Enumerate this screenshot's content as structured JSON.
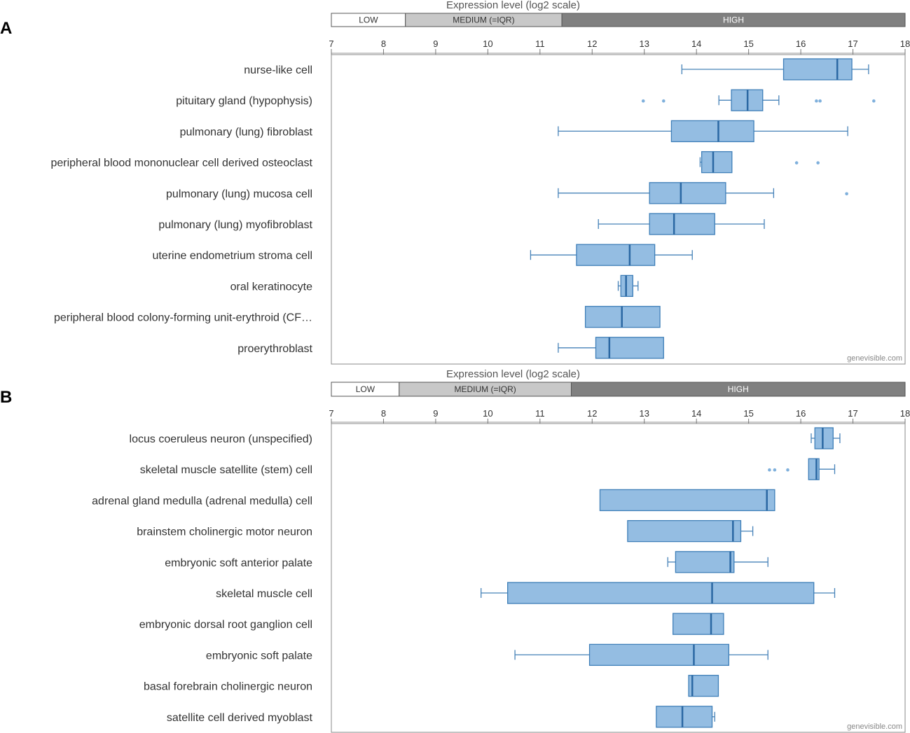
{
  "chart_data": [
    {
      "panel": "A",
      "type": "boxplot",
      "title": "",
      "xlabel": "Expression level (log2 scale)",
      "xlim": [
        7,
        18
      ],
      "ticks": [
        "7",
        "8",
        "9",
        "10",
        "11",
        "12",
        "13",
        "14",
        "15",
        "16",
        "17",
        "18"
      ],
      "bands": [
        {
          "label": "LOW",
          "from": 7,
          "to": 8.42,
          "fill": "#ffffff",
          "text_color": "#333333"
        },
        {
          "label": "MEDIUM (=IQR)",
          "from": 8.42,
          "to": 11.42,
          "fill": "#c8c8c8",
          "text_color": "#333333"
        },
        {
          "label": "HIGH",
          "from": 11.42,
          "to": 18,
          "fill": "#808080",
          "text_color": "#ffffff"
        }
      ],
      "watermark": "genevisible.com",
      "categories": [
        {
          "label": "nurse-like cell",
          "whisker_low": 13.72,
          "q1": 15.67,
          "median": 16.7,
          "q3": 16.98,
          "whisker_high": 17.3,
          "outliers": []
        },
        {
          "label": "pituitary gland (hypophysis)",
          "whisker_low": 14.43,
          "q1": 14.67,
          "median": 14.98,
          "q3": 15.27,
          "whisker_high": 15.58,
          "outliers": [
            12.98,
            13.37,
            16.3,
            16.37,
            17.4
          ]
        },
        {
          "label": "pulmonary (lung) fibroblast",
          "whisker_low": 11.35,
          "q1": 13.52,
          "median": 14.42,
          "q3": 15.1,
          "whisker_high": 16.9,
          "outliers": []
        },
        {
          "label": "peripheral blood mononuclear cell derived osteoclast",
          "whisker_low": 14.07,
          "q1": 14.1,
          "median": 14.32,
          "q3": 14.68,
          "whisker_high": 14.68,
          "outliers": [
            15.92,
            16.33
          ]
        },
        {
          "label": "pulmonary (lung) mucosa cell",
          "whisker_low": 11.35,
          "q1": 13.1,
          "median": 13.7,
          "q3": 14.56,
          "whisker_high": 15.48,
          "outliers": [
            16.88
          ]
        },
        {
          "label": "pulmonary (lung) myofibroblast",
          "whisker_low": 12.12,
          "q1": 13.1,
          "median": 13.57,
          "q3": 14.35,
          "whisker_high": 15.3,
          "outliers": []
        },
        {
          "label": "uterine endometrium stroma cell",
          "whisker_low": 10.82,
          "q1": 11.7,
          "median": 12.72,
          "q3": 13.2,
          "whisker_high": 13.92,
          "outliers": []
        },
        {
          "label": "oral keratinocyte",
          "whisker_low": 12.5,
          "q1": 12.55,
          "median": 12.65,
          "q3": 12.78,
          "whisker_high": 12.88,
          "outliers": []
        },
        {
          "label": "peripheral blood colony-forming unit-erythroid (CF…",
          "whisker_low": 11.87,
          "q1": 11.87,
          "median": 12.57,
          "q3": 13.3,
          "whisker_high": 13.3,
          "outliers": []
        },
        {
          "label": "proerythroblast",
          "whisker_low": 11.35,
          "q1": 12.07,
          "median": 12.33,
          "q3": 13.37,
          "whisker_high": 13.37,
          "outliers": []
        }
      ]
    },
    {
      "panel": "B",
      "type": "boxplot",
      "title": "",
      "xlabel": "Expression level (log2 scale)",
      "xlim": [
        7,
        18
      ],
      "ticks": [
        "7",
        "8",
        "9",
        "10",
        "11",
        "12",
        "13",
        "14",
        "15",
        "16",
        "17",
        "18"
      ],
      "bands": [
        {
          "label": "LOW",
          "from": 7,
          "to": 8.3,
          "fill": "#ffffff",
          "text_color": "#333333"
        },
        {
          "label": "MEDIUM (=IQR)",
          "from": 8.3,
          "to": 11.6,
          "fill": "#c8c8c8",
          "text_color": "#333333"
        },
        {
          "label": "HIGH",
          "from": 11.6,
          "to": 18,
          "fill": "#808080",
          "text_color": "#ffffff"
        }
      ],
      "watermark": "genevisible.com",
      "categories": [
        {
          "label": "locus coeruleus neuron (unspecified)",
          "whisker_low": 16.2,
          "q1": 16.27,
          "median": 16.42,
          "q3": 16.62,
          "whisker_high": 16.75,
          "outliers": []
        },
        {
          "label": "skeletal muscle satellite (stem) cell",
          "whisker_low": 16.15,
          "q1": 16.15,
          "median": 16.3,
          "q3": 16.35,
          "whisker_high": 16.65,
          "outliers": [
            15.4,
            15.5,
            15.75
          ]
        },
        {
          "label": "adrenal gland medulla (adrenal medulla) cell",
          "whisker_low": 12.15,
          "q1": 12.15,
          "median": 15.35,
          "q3": 15.5,
          "whisker_high": 15.5,
          "outliers": []
        },
        {
          "label": "brainstem cholinergic motor neuron",
          "whisker_low": 12.68,
          "q1": 12.68,
          "median": 14.7,
          "q3": 14.85,
          "whisker_high": 15.08,
          "outliers": []
        },
        {
          "label": "embryonic soft anterior palate",
          "whisker_low": 13.45,
          "q1": 13.6,
          "median": 14.65,
          "q3": 14.72,
          "whisker_high": 15.37,
          "outliers": []
        },
        {
          "label": "skeletal muscle cell",
          "whisker_low": 9.87,
          "q1": 10.38,
          "median": 14.3,
          "q3": 16.25,
          "whisker_high": 16.65,
          "outliers": []
        },
        {
          "label": "embryonic dorsal root ganglion cell",
          "whisker_low": 13.55,
          "q1": 13.55,
          "median": 14.28,
          "q3": 14.52,
          "whisker_high": 14.52,
          "outliers": []
        },
        {
          "label": "embryonic soft palate",
          "whisker_low": 10.52,
          "q1": 11.95,
          "median": 13.95,
          "q3": 14.62,
          "whisker_high": 15.37,
          "outliers": []
        },
        {
          "label": "basal forebrain cholinergic neuron",
          "whisker_low": 13.85,
          "q1": 13.85,
          "median": 13.92,
          "q3": 14.42,
          "whisker_high": 14.42,
          "outliers": []
        },
        {
          "label": "satellite cell derived myoblast",
          "whisker_low": 13.23,
          "q1": 13.23,
          "median": 13.73,
          "q3": 14.3,
          "whisker_high": 14.35,
          "outliers": []
        }
      ]
    }
  ]
}
